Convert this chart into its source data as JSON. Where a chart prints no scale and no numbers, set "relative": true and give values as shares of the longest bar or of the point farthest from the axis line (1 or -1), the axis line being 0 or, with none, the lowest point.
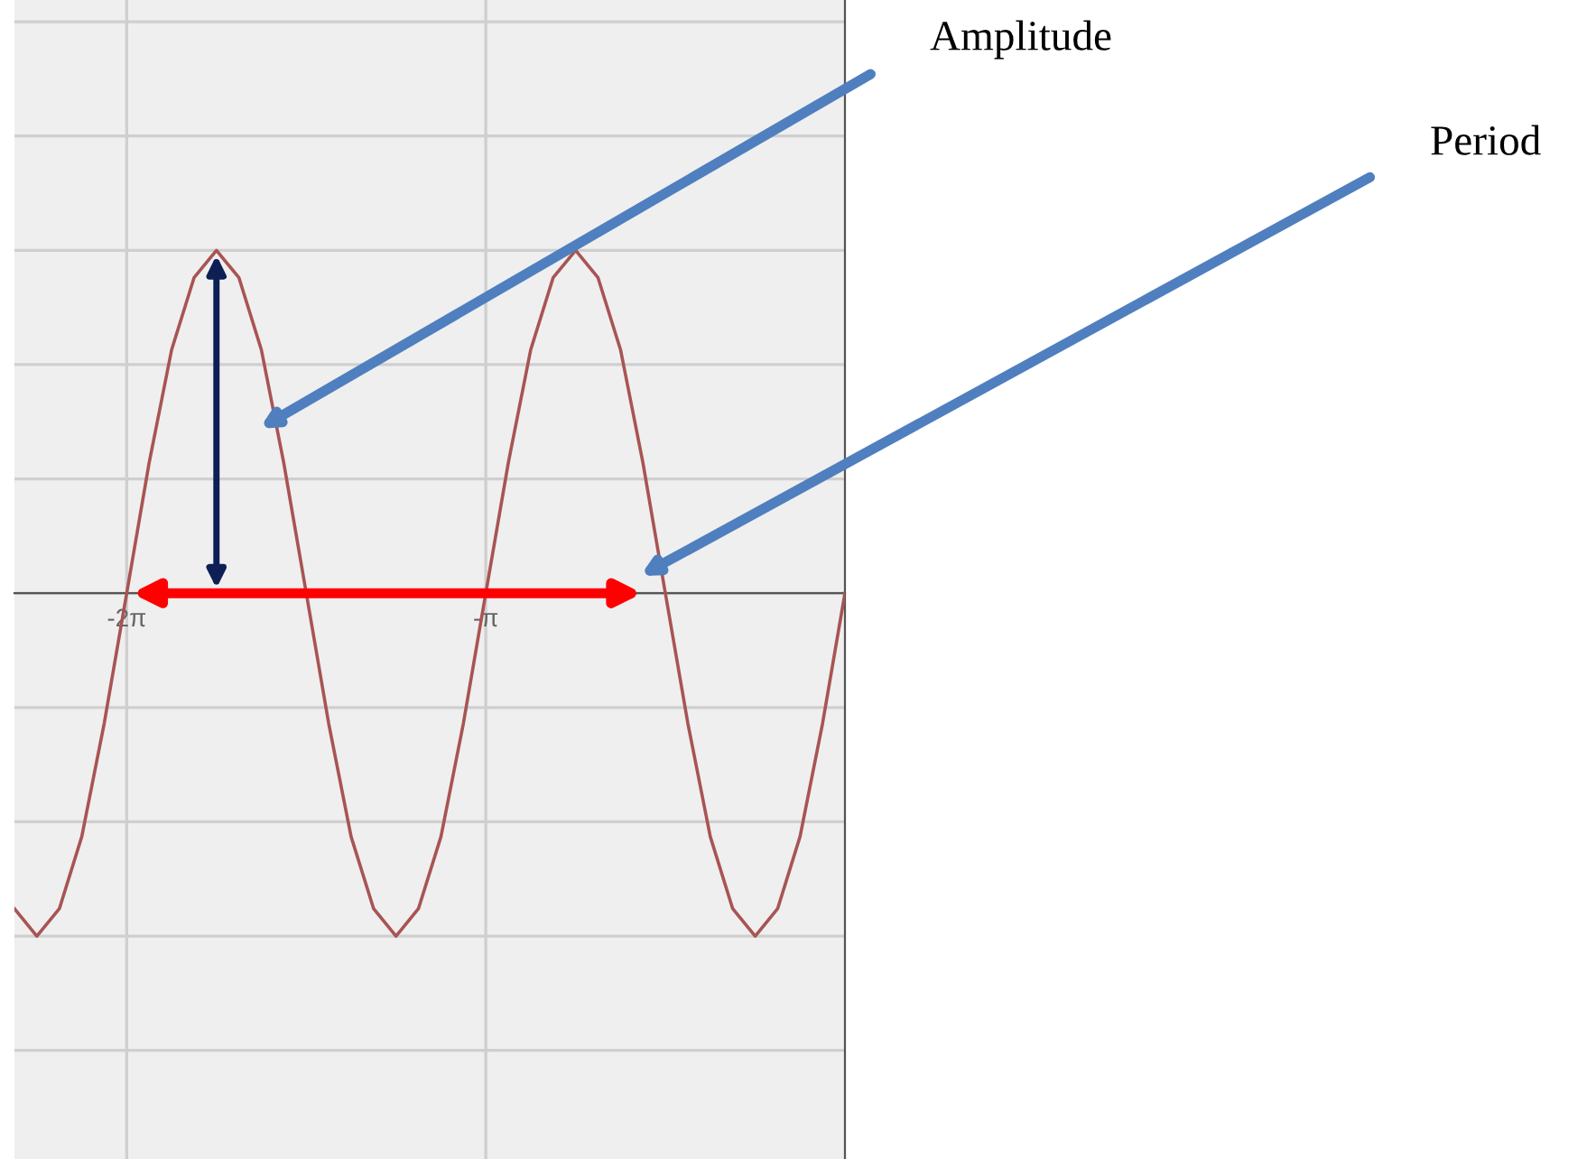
{
  "chart_data": {
    "type": "line",
    "relative": true,
    "grid": true,
    "tick_labels": "x",
    "legend": false,
    "marker": "none",
    "line_style": "solid",
    "x": [
      -7.265,
      -7.069,
      -6.872,
      -6.676,
      -6.48,
      -6.283,
      -6.087,
      -5.89,
      -5.694,
      -5.498,
      -5.301,
      -5.105,
      -4.909,
      -4.712,
      -4.516,
      -4.32,
      -4.123,
      -3.927,
      -3.731,
      -3.534,
      -3.338,
      -3.142,
      -2.945,
      -2.749,
      -2.553,
      -2.356,
      -2.16,
      -1.963,
      -1.767,
      -1.571,
      -1.374,
      -1.178,
      -0.982,
      -0.785,
      -0.589,
      -0.393,
      -0.196,
      0
    ],
    "xlim": [
      -7.265,
      0
    ],
    "xticks": [
      {
        "value": -6.283,
        "label": "-2π"
      },
      {
        "value": -3.142,
        "label": "-π"
      }
    ],
    "series": [
      {
        "color": "#a85454",
        "values": [
          -0.92,
          -1,
          -0.92,
          -0.71,
          -0.38,
          0,
          0.38,
          0.71,
          0.92,
          1,
          0.92,
          0.71,
          0.38,
          0,
          -0.38,
          -0.71,
          -0.92,
          -1,
          -0.92,
          -0.71,
          -0.38,
          0,
          0.38,
          0.71,
          0.92,
          1,
          0.92,
          0.71,
          0.38,
          0,
          -0.38,
          -0.71,
          -0.92,
          -1,
          -0.92,
          -0.71,
          -0.38,
          0
        ]
      }
    ],
    "annotations": [
      "Amplitude",
      "Period"
    ]
  }
}
